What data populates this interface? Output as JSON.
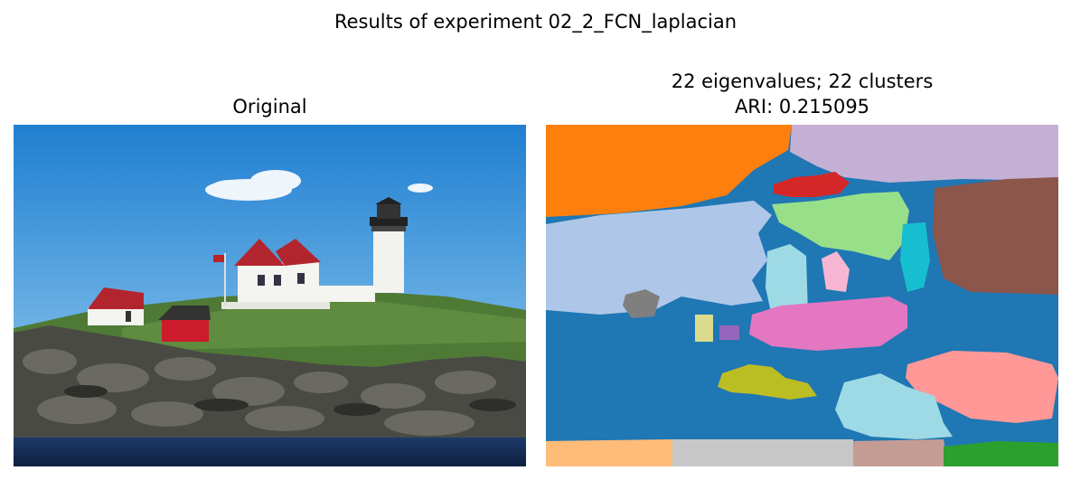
{
  "figure": {
    "suptitle": "Results of experiment 02_2_FCN_laplacian"
  },
  "panels": {
    "original": {
      "title": "Original",
      "subject": "lighthouse on rocky coast photo"
    },
    "segmentation": {
      "title_line1": "22 eigenvalues; 22 clusters",
      "title_line2": "ARI: 0.215095",
      "eigenvalues": 22,
      "clusters": 22,
      "ari": 0.215095
    }
  },
  "palette": {
    "blue": "#1f77b4",
    "orange": "#ff7f0e",
    "green": "#2ca02c",
    "red": "#d62728",
    "purple": "#9467bd",
    "brown": "#8c564b",
    "pink": "#e377c2",
    "gray": "#7f7f7f",
    "olive": "#bcbd22",
    "cyan": "#17becf",
    "light_blue": "#aec7e8",
    "light_orange": "#ffbb78",
    "light_green": "#98df8a",
    "light_red": "#ff9896",
    "lavender": "#c5b0d5",
    "tan": "#c49c94",
    "light_pink": "#f7b6d2",
    "light_gray": "#c7c7c7",
    "khaki": "#dbdb8d",
    "light_cyan": "#9edae5"
  }
}
